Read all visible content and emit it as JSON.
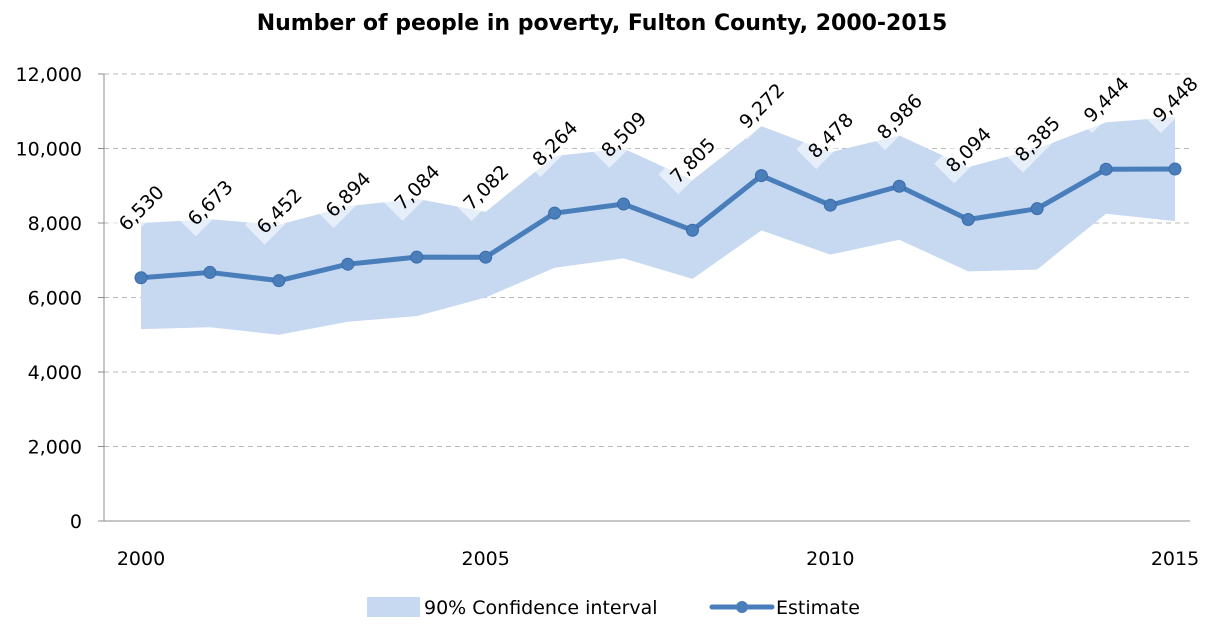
{
  "chart_data": {
    "type": "line",
    "title": "Number of people in poverty, Fulton County, 2000-2015",
    "xlabel": "",
    "ylabel": "",
    "x": [
      2000,
      2001,
      2002,
      2003,
      2004,
      2005,
      2006,
      2007,
      2008,
      2009,
      2010,
      2011,
      2012,
      2013,
      2014,
      2015
    ],
    "x_tick_labels": [
      "2000",
      "2005",
      "2010",
      "2015"
    ],
    "x_ticks": [
      2000,
      2005,
      2010,
      2015
    ],
    "ylim": [
      0,
      12000
    ],
    "y_ticks": [
      0,
      2000,
      4000,
      6000,
      8000,
      10000,
      12000
    ],
    "y_tick_labels": [
      "0",
      "2,000",
      "4,000",
      "6,000",
      "8,000",
      "10,000",
      "12,000"
    ],
    "grid": true,
    "legend_position": "bottom",
    "series": [
      {
        "name": "Estimate",
        "type": "line",
        "color": "#4a7ebb",
        "values": [
          6530,
          6673,
          6452,
          6894,
          7084,
          7082,
          8264,
          8509,
          7805,
          9272,
          8478,
          8986,
          8094,
          8385,
          9444,
          9448
        ],
        "data_labels": [
          "6,530",
          "6,673",
          "6,452",
          "6,894",
          "7,084",
          "7,082",
          "8,264",
          "8,509",
          "7,805",
          "9,272",
          "8,478",
          "8,986",
          "8,094",
          "8,385",
          "9,444",
          "9,448"
        ]
      },
      {
        "name": "90% Confidence interval",
        "type": "area",
        "color": "#c6d9f1",
        "lower": [
          5150,
          5200,
          5000,
          5350,
          5500,
          6000,
          6800,
          7050,
          6500,
          7800,
          7150,
          7550,
          6700,
          6750,
          8250,
          8050
        ],
        "upper": [
          8000,
          8100,
          7950,
          8450,
          8650,
          8300,
          9800,
          10000,
          9150,
          10600,
          9900,
          10350,
          9500,
          10000,
          10700,
          10850
        ]
      }
    ]
  }
}
